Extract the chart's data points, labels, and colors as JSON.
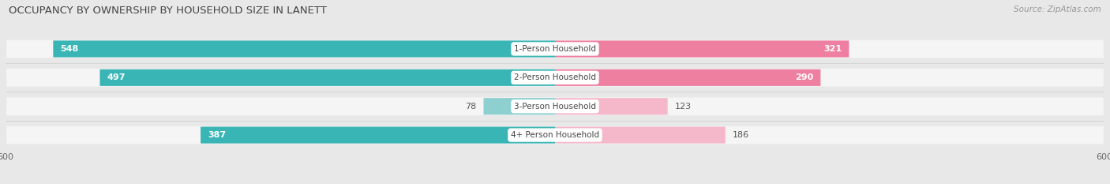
{
  "title": "OCCUPANCY BY OWNERSHIP BY HOUSEHOLD SIZE IN LANETT",
  "source": "Source: ZipAtlas.com",
  "categories": [
    "1-Person Household",
    "2-Person Household",
    "3-Person Household",
    "4+ Person Household"
  ],
  "owner_values": [
    548,
    497,
    78,
    387
  ],
  "renter_values": [
    321,
    290,
    123,
    186
  ],
  "owner_color_strong": "#3ab5b5",
  "owner_color_light": "#8ed0d0",
  "renter_color_strong": "#ef7fa0",
  "renter_color_light": "#f5b8cb",
  "axis_max": 600,
  "bg_color": "#e8e8e8",
  "bar_bg_color": "#f5f5f5",
  "title_fontsize": 9.5,
  "source_fontsize": 7.5,
  "value_fontsize": 8,
  "tick_fontsize": 8,
  "legend_fontsize": 8,
  "category_label_fontsize": 7.5,
  "small_threshold": 200
}
